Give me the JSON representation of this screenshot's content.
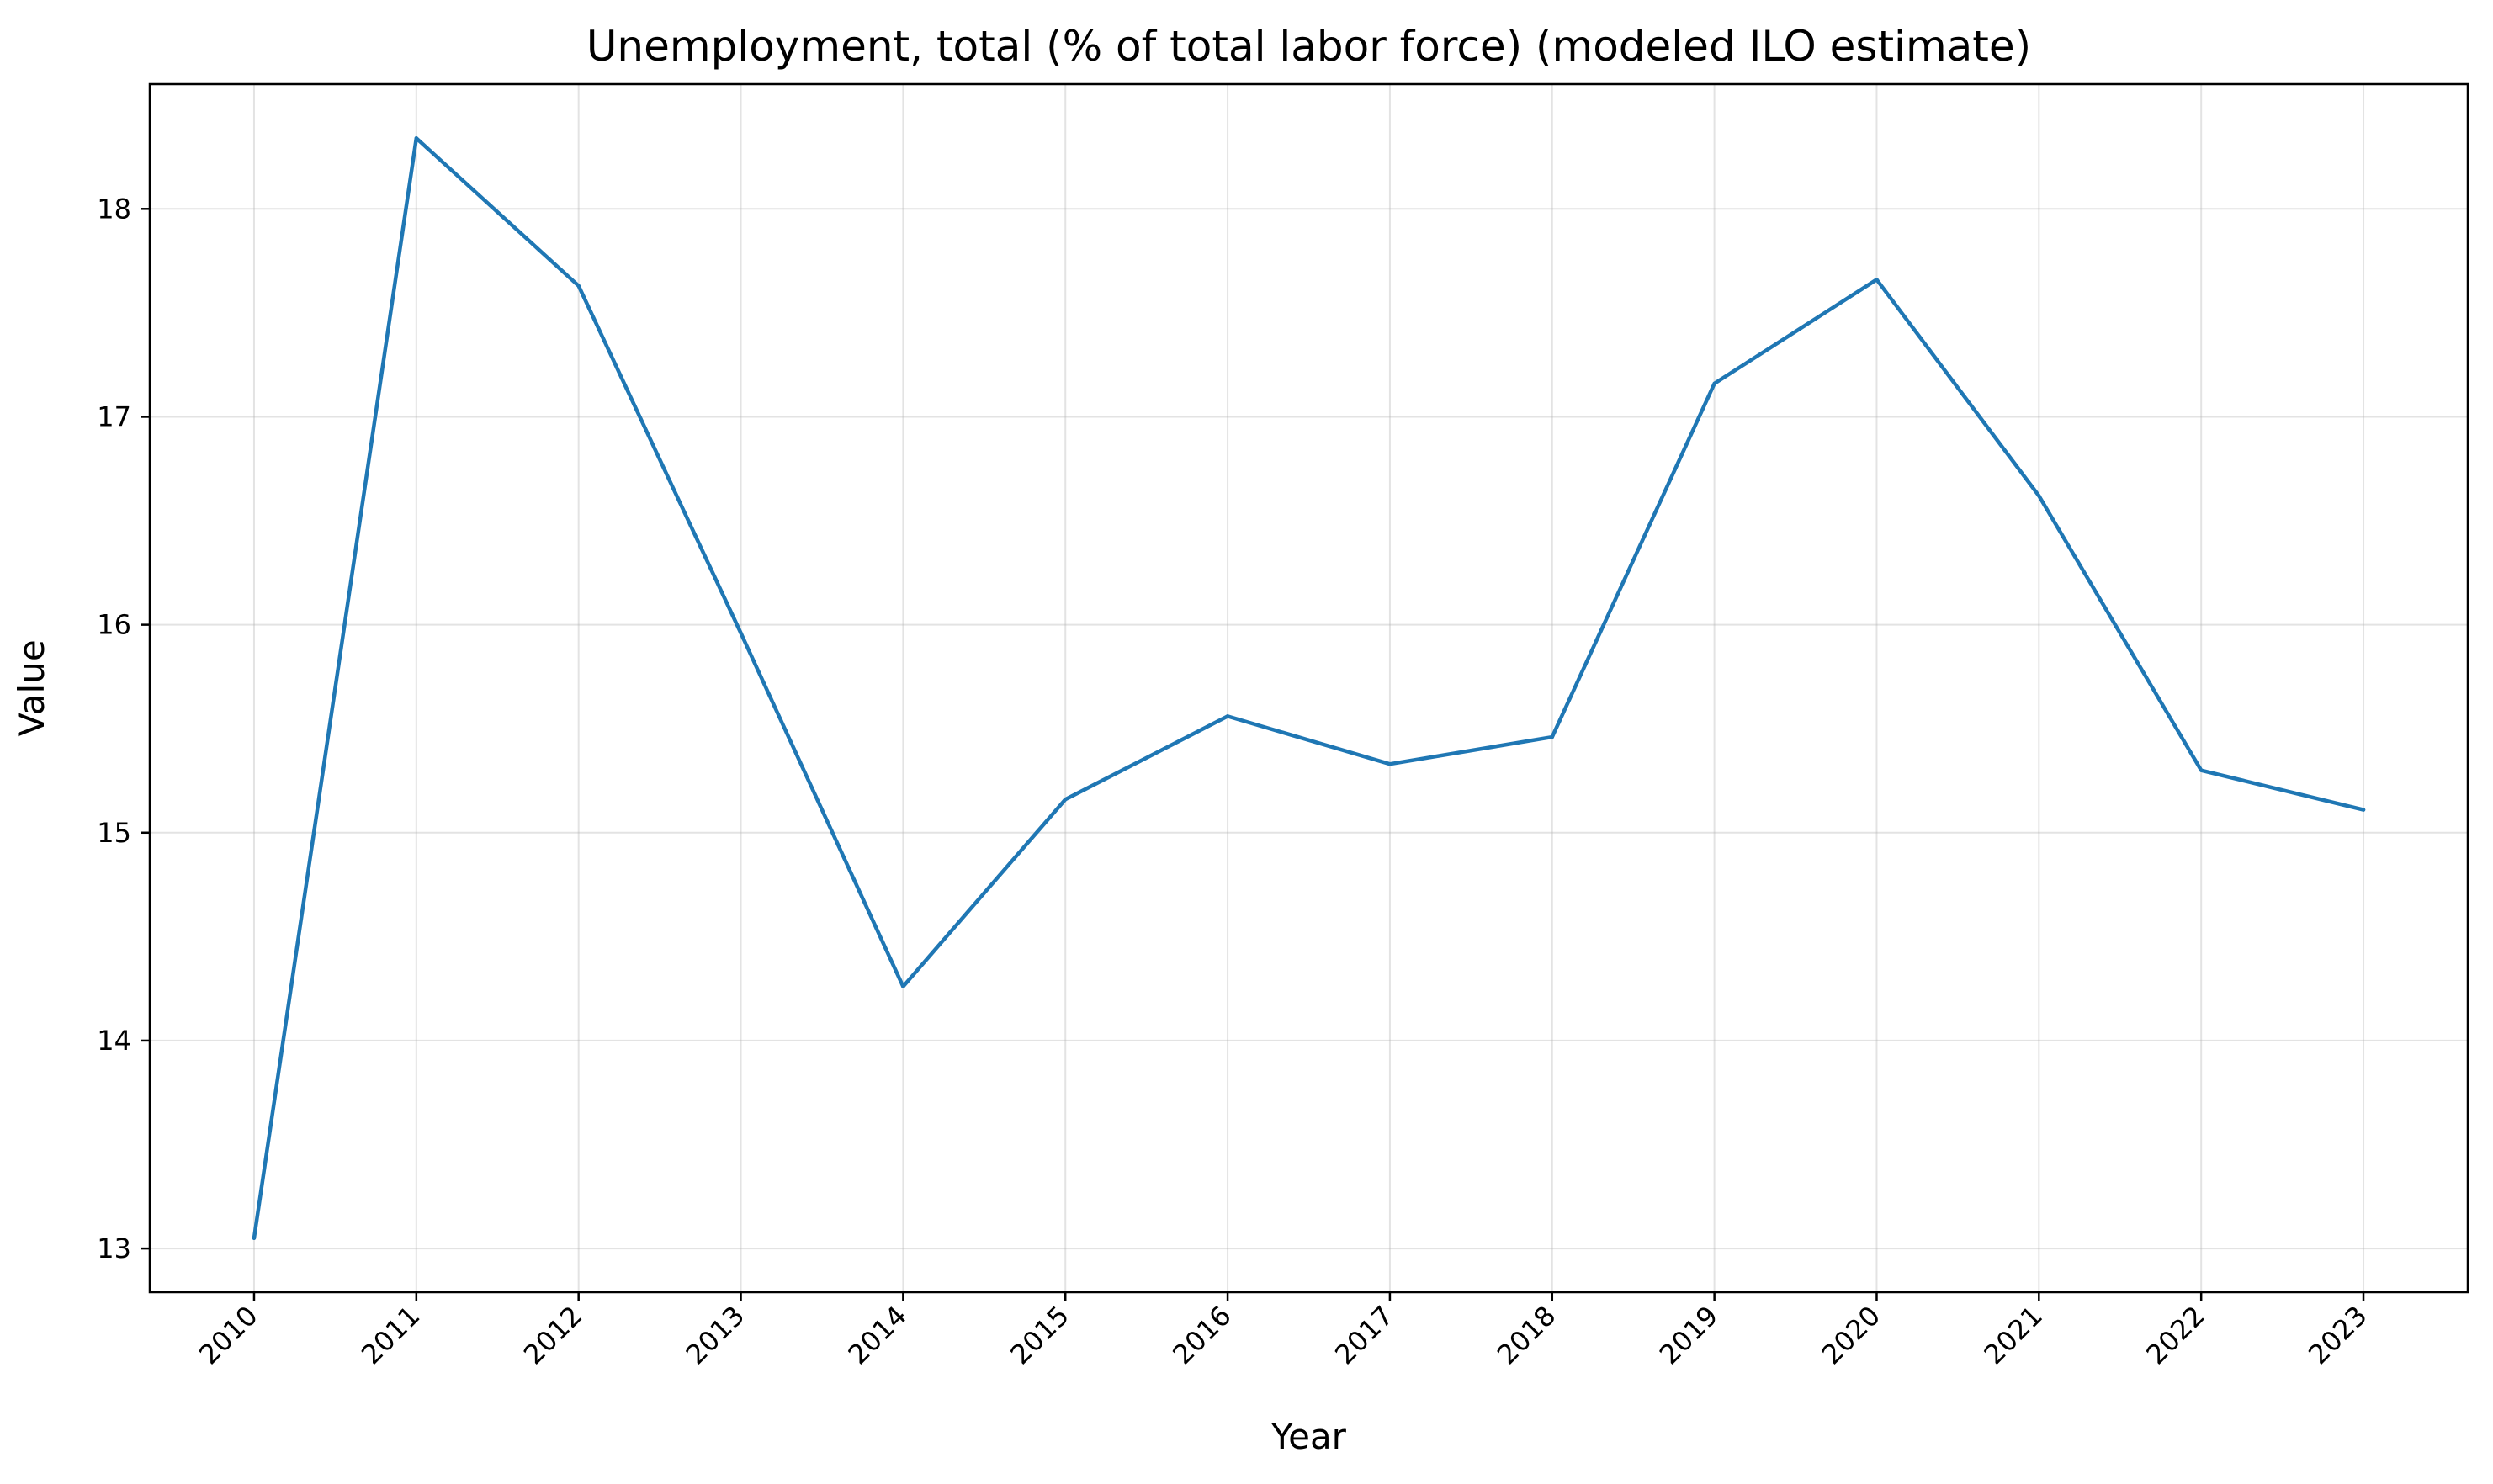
{
  "chart_data": {
    "type": "line",
    "title": "Unemployment, total (% of total labor force) (modeled ILO estimate)",
    "xlabel": "Year",
    "ylabel": "Value",
    "categories": [
      "2010",
      "2011",
      "2012",
      "2013",
      "2014",
      "2015",
      "2016",
      "2017",
      "2018",
      "2019",
      "2020",
      "2021",
      "2022",
      "2023"
    ],
    "series": [
      {
        "color": "#1f77b4",
        "values": [
          13.05,
          18.34,
          17.63,
          15.96,
          14.26,
          15.16,
          15.56,
          15.33,
          15.46,
          17.16,
          17.66,
          16.62,
          15.3,
          15.11
        ]
      }
    ],
    "yticks": [
      13,
      14,
      15,
      16,
      17,
      18
    ],
    "ylim": [
      12.79,
      18.6
    ],
    "grid": true,
    "legend": "none"
  }
}
